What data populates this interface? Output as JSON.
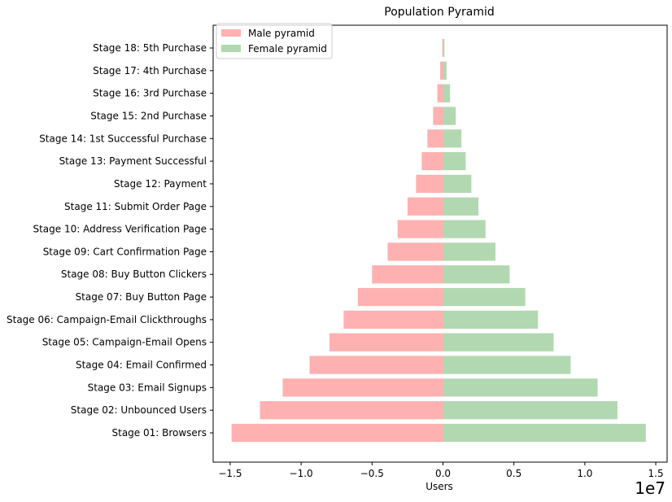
{
  "chart_data": {
    "type": "bar",
    "orientation": "horizontal",
    "title": "Population Pyramid",
    "xlabel": "Users",
    "ylabel": "",
    "x_offset_label": "1e7",
    "xlim": [
      -1.62,
      1.58
    ],
    "x_ticks": [
      -1.5,
      -1.0,
      -0.5,
      0.0,
      0.5,
      1.0,
      1.5
    ],
    "x_tick_labels": [
      "−1.5",
      "−1.0",
      "−0.5",
      "0.0",
      "0.5",
      "1.0",
      "1.5"
    ],
    "grid": false,
    "legend_position": "upper-left",
    "categories": [
      "Stage 01: Browsers",
      "Stage 02: Unbounced Users",
      "Stage 03: Email Signups",
      "Stage 04: Email Confirmed",
      "Stage 05: Campaign-Email Opens",
      "Stage 06: Campaign-Email Clickthroughs",
      "Stage 07: Buy Button Page",
      "Stage 08: Buy Button Clickers",
      "Stage 09: Cart Confirmation Page",
      "Stage 10: Address Verification Page",
      "Stage 11: Submit Order Page",
      "Stage 12: Payment",
      "Stage 13: Payment Successful",
      "Stage 14: 1st Successful Purchase",
      "Stage 15: 2nd Purchase",
      "Stage 16: 3rd Purchase",
      "Stage 17: 4th Purchase",
      "Stage 18: 5th Purchase"
    ],
    "series": [
      {
        "name": "Male pyramid",
        "color": "#ffb1b1",
        "values": [
          -1.49,
          -1.29,
          -1.13,
          -0.94,
          -0.8,
          -0.7,
          -0.6,
          -0.5,
          -0.39,
          -0.32,
          -0.25,
          -0.19,
          -0.15,
          -0.11,
          -0.07,
          -0.04,
          -0.02,
          -0.005
        ]
      },
      {
        "name": "Female pyramid",
        "color": "#b2d8b2",
        "values": [
          1.43,
          1.23,
          1.09,
          0.9,
          0.78,
          0.67,
          0.58,
          0.47,
          0.37,
          0.3,
          0.25,
          0.2,
          0.16,
          0.13,
          0.09,
          0.05,
          0.025,
          0.01
        ]
      }
    ]
  }
}
